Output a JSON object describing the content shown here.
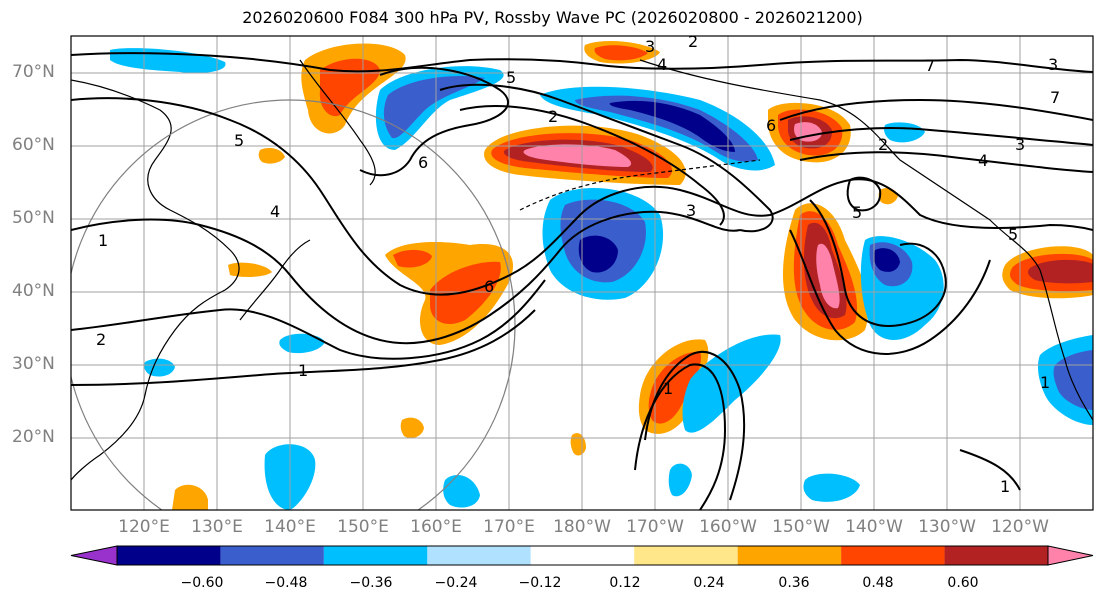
{
  "title": "2026020600 F084 300 hPa PV, Rossby Wave PC (2026020800 - 2026021200)",
  "lat_labels": [
    "70°N",
    "60°N",
    "50°N",
    "40°N",
    "30°N",
    "20°N"
  ],
  "lon_labels": [
    "120°E",
    "130°E",
    "140°E",
    "150°E",
    "160°E",
    "170°E",
    "180°W",
    "170°W",
    "160°W",
    "150°W",
    "140°W",
    "130°W",
    "120°W"
  ],
  "contour_labels": [
    "2",
    "3",
    "4",
    "5",
    "6",
    "7",
    "1",
    "1",
    "2",
    "3",
    "4",
    "5",
    "6",
    "1",
    "1",
    "2",
    "3",
    "4",
    "5",
    "6",
    "7",
    "1",
    "2",
    "3",
    "5"
  ],
  "colorbar": {
    "colors": [
      "#9932cc",
      "#00008b",
      "#3a5fcd",
      "#00bfff",
      "#b0e2ff",
      "#ffffff",
      "#ffe78a",
      "#ffa500",
      "#ff4500",
      "#b22222",
      "#ff82ab"
    ],
    "ticks": [
      "−0.60",
      "−0.48",
      "−0.36",
      "−0.24",
      "−0.12",
      "0.12",
      "0.24",
      "0.36",
      "0.48",
      "0.60"
    ]
  },
  "colors": {
    "coast": "#000000",
    "grid": "#a0a0a0",
    "contour": "#000000",
    "circle": "#808080"
  }
}
